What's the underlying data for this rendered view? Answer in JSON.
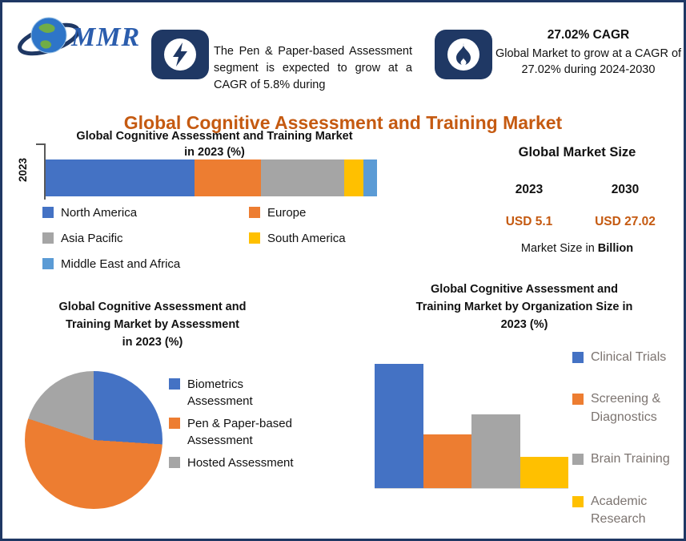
{
  "logo": {
    "text": "MMR"
  },
  "badges": [
    {
      "icon": "lightning-icon",
      "text": "The Pen & Paper-based Assessment segment is expected to grow at a CAGR of 5.8% during"
    },
    {
      "icon": "flame-icon",
      "title": "27.02% CAGR",
      "text": "Global Market to grow at a CAGR of 27.02% during 2024-2030"
    }
  ],
  "main_title": "Global Cognitive Assessment and Training Market",
  "market_size": {
    "title": "Global Market Size",
    "year_left": "2023",
    "year_right": "2030",
    "value_left": "USD 5.1",
    "value_right": "USD 27.02",
    "caption_prefix": "Market Size in ",
    "caption_bold": "Billion"
  },
  "colors": {
    "navy": "#1F3864",
    "accent_orange": "#C55A11",
    "blue": "#4472C4",
    "orange": "#ED7D31",
    "gray": "#A5A5A5",
    "yellow": "#FFC000",
    "light_blue": "#5B9BD5"
  },
  "chart_data": [
    {
      "type": "bar",
      "variant": "stacked-horizontal",
      "title": "Global Cognitive Assessment and Training Market\nin 2023 (%)",
      "y_tick": "2023",
      "categories": [
        "North America",
        "Europe",
        "Asia Pacific",
        "South America",
        "Middle East and Africa"
      ],
      "values": [
        45,
        20,
        25,
        6,
        4
      ],
      "colors": [
        "#4472C4",
        "#ED7D31",
        "#A5A5A5",
        "#FFC000",
        "#5B9BD5"
      ],
      "xlim": [
        0,
        100
      ],
      "legend_position": "bottom"
    },
    {
      "type": "pie",
      "title": "Global Cognitive Assessment and\nTraining Market by Assessment\nin 2023 (%)",
      "categories": [
        "Biometrics Assessment",
        "Pen & Paper-based Assessment",
        "Hosted Assessment"
      ],
      "values": [
        26,
        54,
        20
      ],
      "colors": [
        "#4472C4",
        "#ED7D31",
        "#A5A5A5"
      ],
      "legend_position": "right"
    },
    {
      "type": "bar",
      "variant": "vertical",
      "title": "Global Cognitive Assessment and\nTraining Market by Organization Size in\n2023 (%)",
      "categories": [
        "Clinical Trials",
        "Screening & Diagnostics",
        "Brain Training",
        "Academic Research"
      ],
      "values": [
        44,
        19,
        26,
        11
      ],
      "colors": [
        "#4472C4",
        "#ED7D31",
        "#A5A5A5",
        "#FFC000"
      ],
      "legend_position": "right"
    }
  ]
}
